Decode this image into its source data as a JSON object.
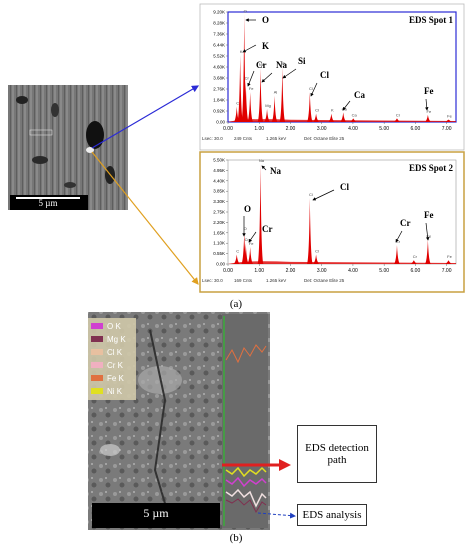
{
  "chart_data": [
    {
      "type": "spectrum",
      "title": "EDS Spot 1",
      "color": "#e00000",
      "border_color": "#2b2bd6",
      "x": [
        0.28,
        0.39,
        0.52,
        0.57,
        0.71,
        1.04,
        1.25,
        1.49,
        1.74,
        2.62,
        2.82,
        3.31,
        3.69,
        4.01,
        5.41,
        6.4,
        7.06
      ],
      "values": [
        1300,
        5600,
        9000,
        3400,
        2500,
        4500,
        1100,
        2200,
        4600,
        2500,
        700,
        700,
        800,
        300,
        300,
        600,
        200
      ],
      "peak_labels": [
        "C",
        "K",
        "O",
        "Cr",
        "Fe",
        "Na",
        "Mg",
        "Al",
        "Si",
        "Cl",
        "Cl",
        "K",
        "Ca",
        "Ca",
        "Cr",
        "Fe",
        "Fe"
      ],
      "xlim": [
        0,
        7.3
      ],
      "xticks": [
        {
          "value": 0,
          "label": "0.00"
        },
        {
          "value": 1,
          "label": "1.00"
        },
        {
          "value": 2,
          "label": "2.00"
        },
        {
          "value": 3,
          "label": "3.00"
        },
        {
          "value": 4,
          "label": "4.00"
        },
        {
          "value": 5,
          "label": "5.00"
        },
        {
          "value": 6,
          "label": "6.00"
        },
        {
          "value": 7,
          "label": "7.00"
        }
      ],
      "ylim": [
        0,
        9200
      ],
      "yticks": [
        {
          "value": 0,
          "label": "0.00"
        },
        {
          "value": 920,
          "label": "0.92K"
        },
        {
          "value": 1840,
          "label": "1.84K"
        },
        {
          "value": 2760,
          "label": "2.76K"
        },
        {
          "value": 3680,
          "label": "3.68K"
        },
        {
          "value": 4600,
          "label": "4.60K"
        },
        {
          "value": 5520,
          "label": "5.52K"
        },
        {
          "value": 6440,
          "label": "6.44K"
        },
        {
          "value": 7360,
          "label": "7.36K"
        },
        {
          "value": 8280,
          "label": "8.28K"
        },
        {
          "value": 9200,
          "label": "9.20K"
        }
      ],
      "annotations": [
        "O",
        "K",
        "Cr",
        "Na",
        "Si",
        "Cl",
        "Ca",
        "Fe"
      ],
      "footer": [
        "Lsec: 30.0",
        "249 Cnts",
        "1.265 keV",
        "Det: Octane Elite 25"
      ]
    },
    {
      "type": "spectrum",
      "title": "EDS Spot 2",
      "color": "#e00000",
      "border_color": "#c8a040",
      "x": [
        0.28,
        0.52,
        0.57,
        0.71,
        1.04,
        2.62,
        2.82,
        5.41,
        5.95,
        6.4,
        7.06
      ],
      "values": [
        500,
        1700,
        1100,
        900,
        5300,
        3500,
        500,
        1000,
        200,
        1300,
        200
      ],
      "peak_labels": [
        "C",
        "O",
        "Cr",
        "Fe",
        "Na",
        "Cl",
        "Cl",
        "Cr",
        "Cr",
        "Fe",
        "Fe"
      ],
      "xlim": [
        0,
        7.3
      ],
      "xticks": [
        {
          "value": 0,
          "label": "0.00"
        },
        {
          "value": 1,
          "label": "1.00"
        },
        {
          "value": 2,
          "label": "2.00"
        },
        {
          "value": 3,
          "label": "3.00"
        },
        {
          "value": 4,
          "label": "4.00"
        },
        {
          "value": 5,
          "label": "5.00"
        },
        {
          "value": 6,
          "label": "6.00"
        },
        {
          "value": 7,
          "label": "7.00"
        }
      ],
      "ylim": [
        0,
        5500
      ],
      "yticks": [
        {
          "value": 0,
          "label": "0.00"
        },
        {
          "value": 550,
          "label": "0.55K"
        },
        {
          "value": 1100,
          "label": "1.10K"
        },
        {
          "value": 1650,
          "label": "1.65K"
        },
        {
          "value": 2200,
          "label": "2.20K"
        },
        {
          "value": 2750,
          "label": "2.75K"
        },
        {
          "value": 3300,
          "label": "3.30K"
        },
        {
          "value": 3850,
          "label": "3.85K"
        },
        {
          "value": 4400,
          "label": "4.40K"
        },
        {
          "value": 4950,
          "label": "4.95K"
        },
        {
          "value": 5500,
          "label": "5.50K"
        }
      ],
      "annotations": [
        "Na",
        "Cl",
        "O",
        "Cr",
        "Cr",
        "Fe"
      ],
      "footer": [
        "Lsec: 30.0",
        "169 Cnts",
        "1.265 keV",
        "Det: Octane Elite 25"
      ]
    }
  ],
  "panel_a": {
    "scale_bar": "5 µm",
    "caption": "(a)"
  },
  "panel_b": {
    "legend": [
      {
        "name": "O K",
        "color": "#d040d0"
      },
      {
        "name": "Mg K",
        "color": "#803050"
      },
      {
        "name": "Cl K",
        "color": "#e8c0a0"
      },
      {
        "name": "Cr K",
        "color": "#f0b0c0"
      },
      {
        "name": "Fe K",
        "color": "#e07040"
      },
      {
        "name": "Ni K",
        "color": "#e0e020"
      }
    ],
    "scale_bar": "5 µm",
    "callouts": [
      "EDS detection path",
      "EDS analysis"
    ],
    "caption": "(b)"
  }
}
